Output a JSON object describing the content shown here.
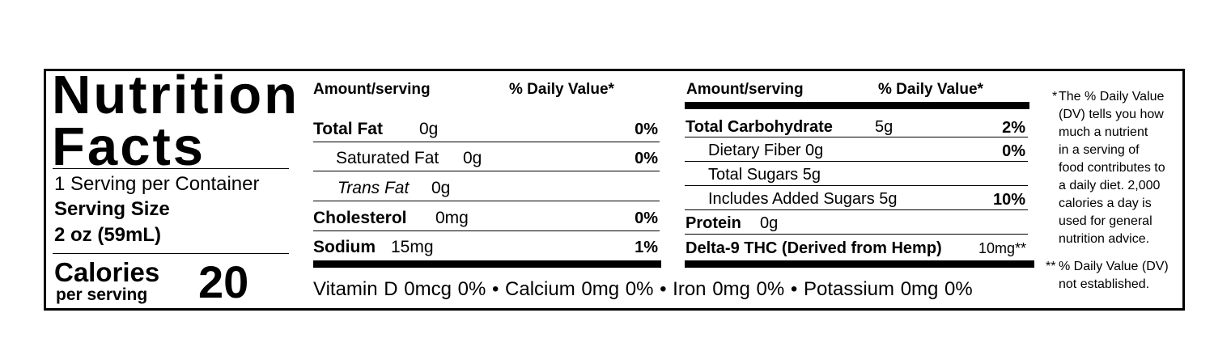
{
  "header": {
    "title_line1": "Nutrition",
    "title_line2": "Facts",
    "servings_per_container": "1 Serving per Container",
    "serving_size_label": "Serving Size",
    "serving_size_value": "2 oz (59mL)",
    "calories_label": "Calories",
    "calories_sub": "per serving",
    "calories_value": "20"
  },
  "col1": {
    "amount_header": "Amount/serving",
    "dv_header": "% Daily Value*",
    "rows": [
      {
        "name": "Total Fat",
        "amount": "0g",
        "dv": "0%"
      },
      {
        "name": "Saturated Fat",
        "amount": "0g",
        "dv": "0%"
      },
      {
        "name": "Trans Fat",
        "amount": "0g",
        "dv": ""
      },
      {
        "name": "Cholesterol",
        "amount": "0mg",
        "dv": "0%"
      },
      {
        "name": "Sodium",
        "amount": "15mg",
        "dv": "1%"
      }
    ]
  },
  "col2": {
    "amount_header": "Amount/serving",
    "dv_header": "% Daily Value*",
    "rows": [
      {
        "name": "Total Carbohydrate",
        "amount": "5g",
        "dv": "2%"
      },
      {
        "name": "Dietary Fiber 0g",
        "amount": "",
        "dv": "0%"
      },
      {
        "name": "Total Sugars 5g",
        "amount": "",
        "dv": ""
      },
      {
        "name": "Includes Added Sugars 5g",
        "amount": "",
        "dv": "10%"
      },
      {
        "name": "Protein",
        "amount": "0g",
        "dv": ""
      },
      {
        "name": "Delta-9 THC (Derived from Hemp)",
        "amount": "10mg**",
        "dv": ""
      }
    ]
  },
  "vitamins": "Vitamin D 0mcg 0%  •  Calcium 0mg 0%  •  Iron 0mg 0%  •  Potassium 0mg 0%",
  "footnotes": {
    "star_mark": "*",
    "star_lines": [
      "The % Daily Value",
      "(DV) tells you how",
      "much a nutrient",
      "in a serving of",
      "food contributes to",
      "a daily diet. 2,000",
      "calories a day is",
      "used for general",
      "nutrition advice."
    ],
    "double_mark": "**",
    "double_lines": [
      "% Daily Value (DV)",
      "not established."
    ]
  }
}
